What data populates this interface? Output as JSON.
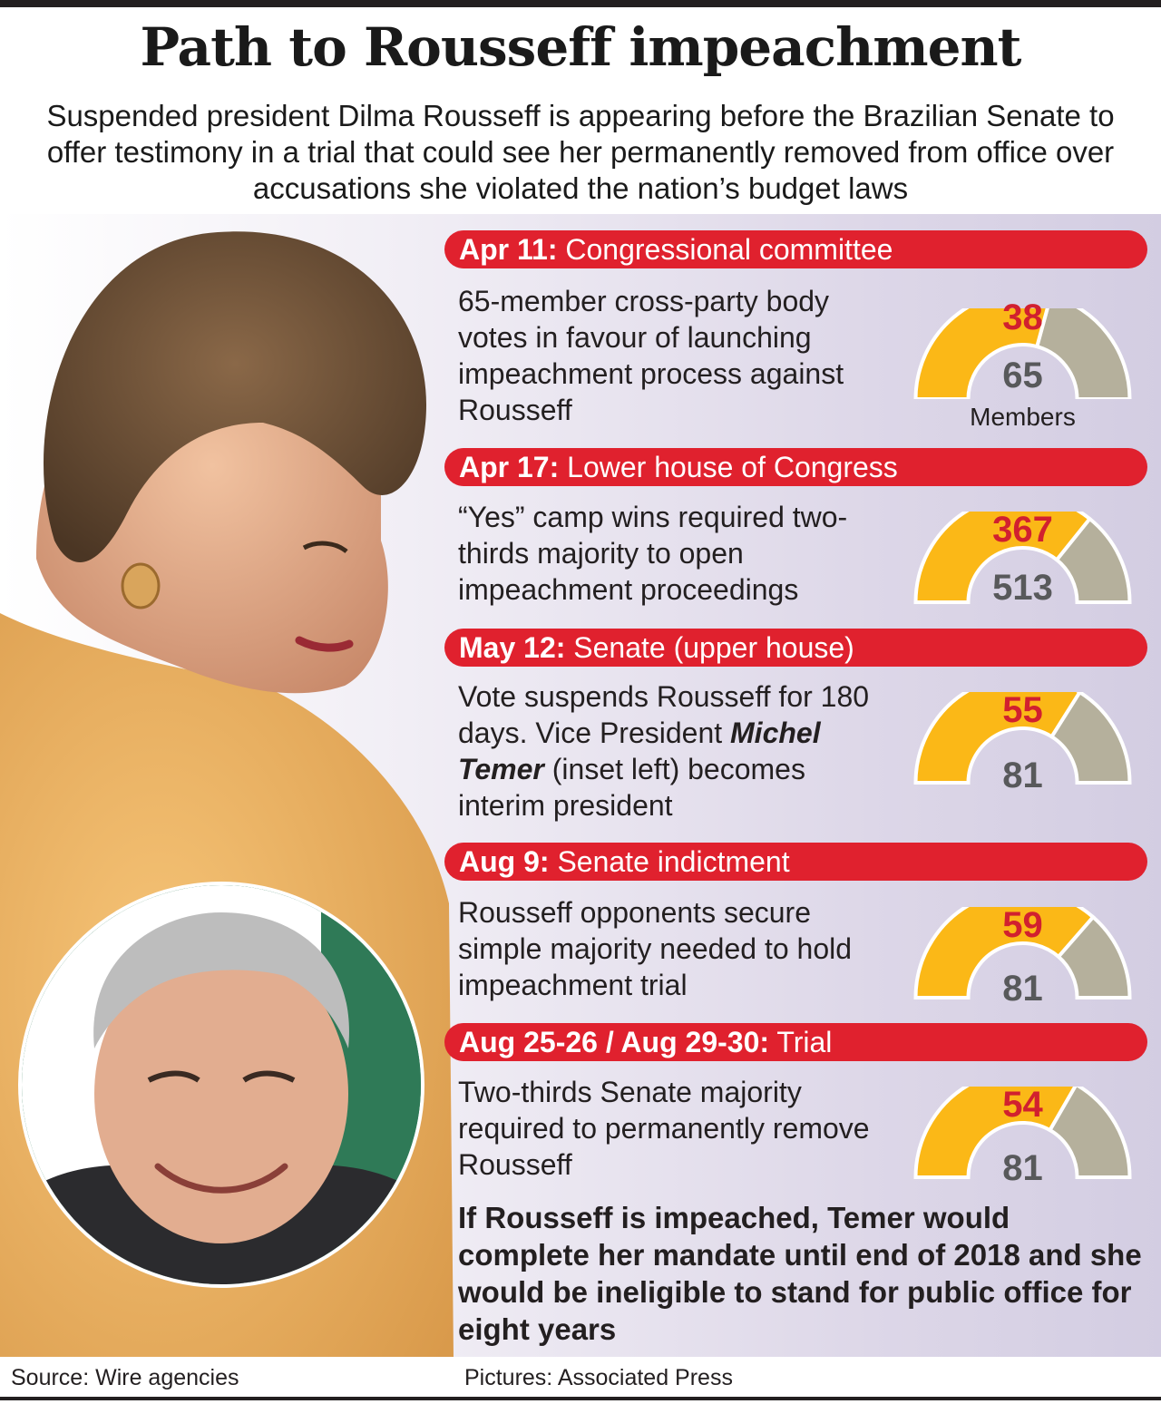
{
  "title": "Path to Rousseff impeachment",
  "subtitle": "Suspended president Dilma Rousseff is appearing before the Brazilian Senate to offer testimony in a trial that could see her permanently removed from office over accusations she violated the nation’s budget laws",
  "colors": {
    "band": "#e0212e",
    "gauge_yes": "#fbb817",
    "gauge_rest": "#b5b09c",
    "yes_number": "#d1202f",
    "total_number": "#58595b"
  },
  "chart_data": {
    "type": "gauge",
    "events": [
      {
        "date": "Apr 11:",
        "body": "Congressional committee",
        "description": "65-member cross-party body votes in favour of launching impeachment process against Rousseff",
        "votes": 38,
        "total": 65,
        "unit": "Members"
      },
      {
        "date": "Apr 17:",
        "body": "Lower house of Congress",
        "description": "“Yes” camp wins required two-thirds majority to open impeachment proceedings",
        "votes": 367,
        "total": 513,
        "unit": ""
      },
      {
        "date": "May 12:",
        "body": "Senate (upper house)",
        "description_parts": [
          "Vote suspends Rousseff for 180 days. Vice President ",
          "Michel Temer",
          " (inset left) becomes interim president"
        ],
        "votes": 55,
        "total": 81,
        "unit": ""
      },
      {
        "date": "Aug 9:",
        "body": "Senate indictment",
        "description": "Rousseff opponents secure simple majority needed to hold impeachment trial",
        "votes": 59,
        "total": 81,
        "unit": ""
      },
      {
        "date": "Aug 25-26 / Aug 29-30:",
        "body": "Trial",
        "description": "Two-thirds Senate majority required to permanently remove Rousseff",
        "votes": 54,
        "total": 81,
        "unit": ""
      }
    ]
  },
  "closing": "If Rousseff is impeached, Temer would complete her mandate until end of 2018 and she would be ineligible to stand for public office for eight years",
  "source": "Source: Wire agencies",
  "credit": "Pictures: Associated Press"
}
